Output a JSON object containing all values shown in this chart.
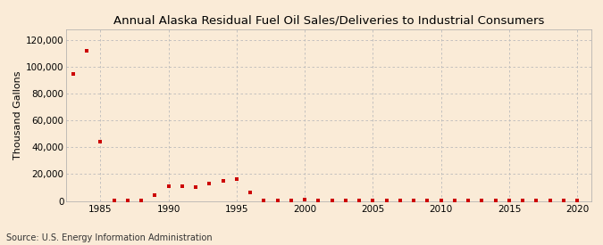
{
  "title": "Annual Alaska Residual Fuel Oil Sales/Deliveries to Industrial Consumers",
  "ylabel": "Thousand Gallons",
  "source": "Source: U.S. Energy Information Administration",
  "background_color": "#faebd7",
  "plot_bg_color": "#faebd7",
  "grid_color": "#bbbbbb",
  "marker_color": "#cc0000",
  "years": [
    1983,
    1984,
    1985,
    1986,
    1987,
    1988,
    1989,
    1990,
    1991,
    1992,
    1993,
    1994,
    1995,
    1996,
    1997,
    1998,
    1999,
    2000,
    2001,
    2002,
    2003,
    2004,
    2005,
    2006,
    2007,
    2008,
    2009,
    2010,
    2011,
    2012,
    2013,
    2014,
    2015,
    2016,
    2017,
    2018,
    2019,
    2020
  ],
  "values": [
    95000,
    112000,
    44000,
    300,
    200,
    300,
    4500,
    11000,
    11000,
    10500,
    13000,
    15000,
    16000,
    6500,
    200,
    200,
    200,
    1200,
    200,
    200,
    200,
    200,
    200,
    200,
    200,
    200,
    200,
    200,
    200,
    200,
    200,
    200,
    200,
    200,
    200,
    200,
    200,
    200
  ],
  "xlim": [
    1982.5,
    2021
  ],
  "ylim": [
    0,
    128000
  ],
  "yticks": [
    0,
    20000,
    40000,
    60000,
    80000,
    100000,
    120000
  ],
  "xticks": [
    1985,
    1990,
    1995,
    2000,
    2005,
    2010,
    2015,
    2020
  ],
  "title_fontsize": 9.5,
  "label_fontsize": 8,
  "tick_fontsize": 7.5,
  "source_fontsize": 7
}
